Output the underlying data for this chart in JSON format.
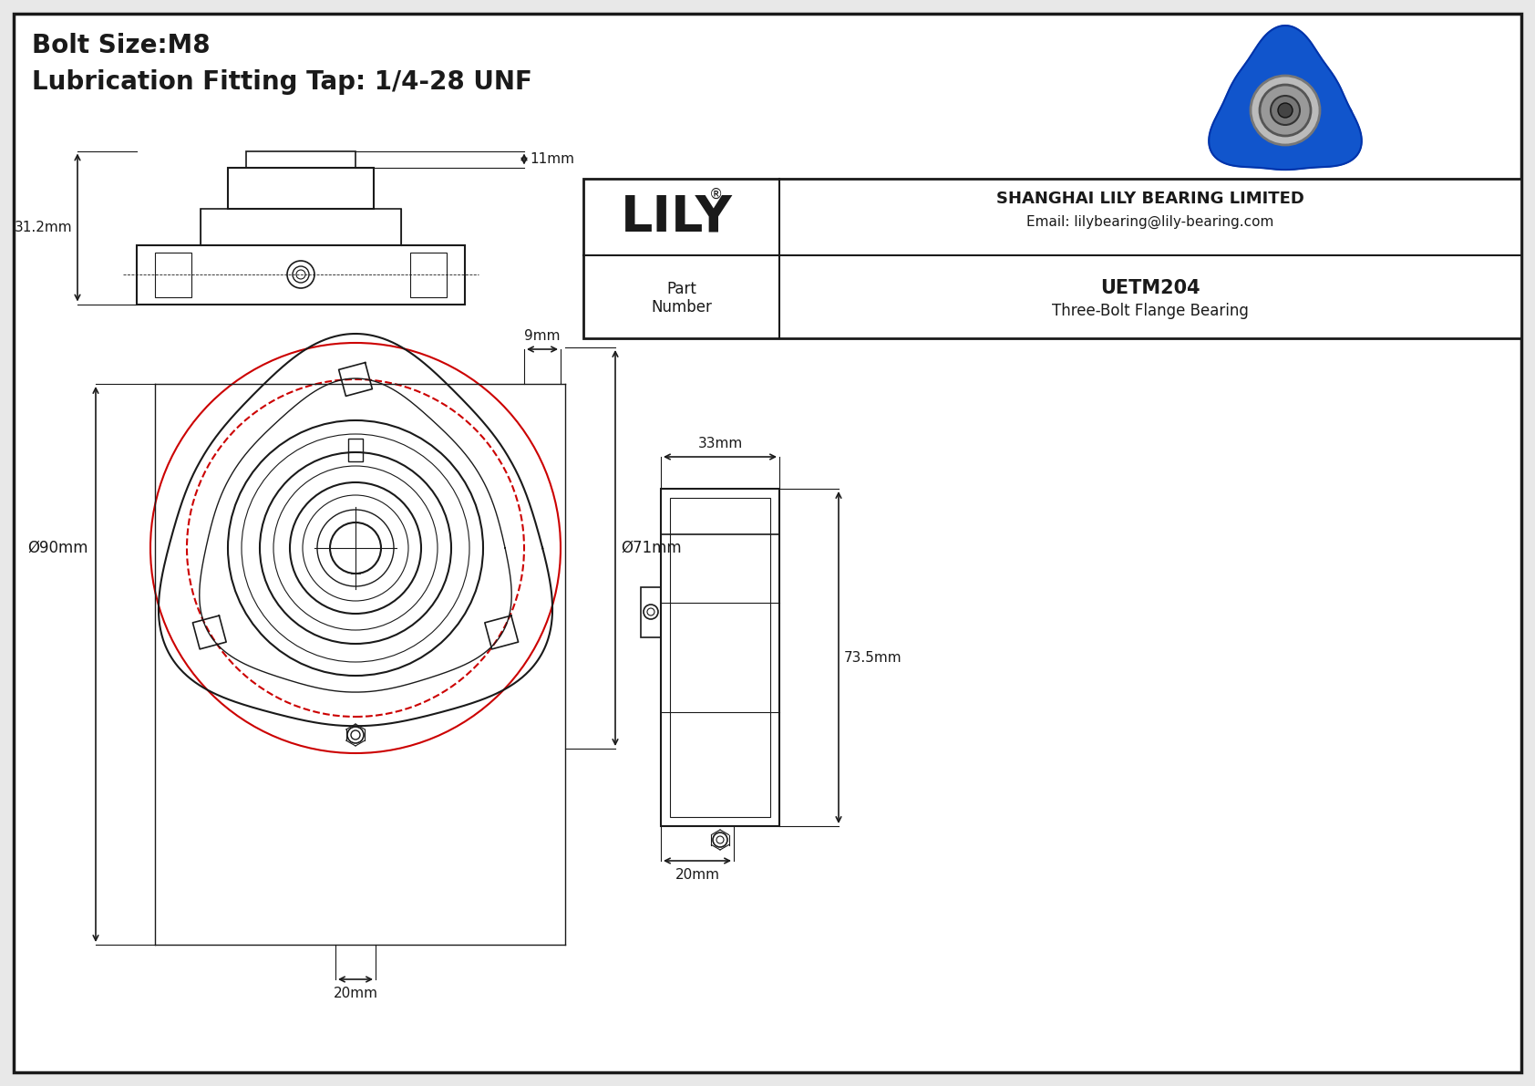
{
  "bg_color": "#e8e8e8",
  "drawing_bg": "#ffffff",
  "line_color": "#1a1a1a",
  "red_circle_color": "#cc0000",
  "title_line1": "Bolt Size:M8",
  "title_line2": "Lubrication Fitting Tap: 1/4-28 UNF",
  "company": "SHANGHAI LILY BEARING LIMITED",
  "email": "Email: lilybearing@lily-bearing.com",
  "part_number": "UETM204",
  "part_desc": "Three-Bolt Flange Bearing",
  "lily_text": "LILY",
  "dim_9mm": "9mm",
  "dim_90mm": "Ø90mm",
  "dim_71mm": "Ø71mm",
  "dim_20mm_front": "20mm",
  "dim_33mm": "33mm",
  "dim_73_5mm": "73.5mm",
  "dim_20mm_side": "20mm",
  "dim_31_2mm": "31.2mm",
  "dim_11mm": "11mm"
}
